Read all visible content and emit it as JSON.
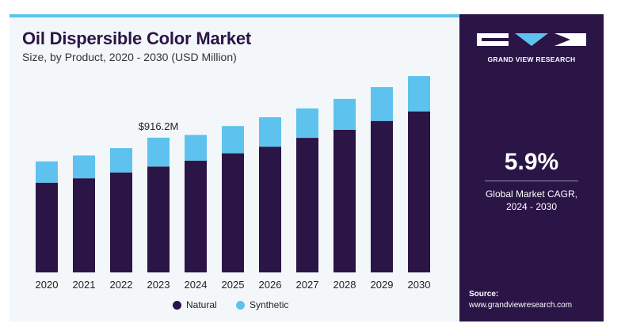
{
  "title": "Oil Dispersible Color Market",
  "subtitle": "Size, by Product, 2020 - 2030 (USD Million)",
  "brand": "GRAND VIEW RESEARCH",
  "cagr_value": "5.9%",
  "cagr_label_line1": "Global Market CAGR,",
  "cagr_label_line2": "2024 - 2030",
  "source_title": "Source:",
  "source_url": "www.grandviewresearch.com",
  "colors": {
    "natural": "#2a1546",
    "synthetic": "#5dc3ee",
    "panel": "#2a1546",
    "accent": "#5dc3ee"
  },
  "chart_data": {
    "type": "bar",
    "stacked": true,
    "categories": [
      "2020",
      "2021",
      "2022",
      "2023",
      "2024",
      "2025",
      "2026",
      "2027",
      "2028",
      "2029",
      "2030"
    ],
    "series": [
      {
        "name": "Natural",
        "values": [
          610,
          640,
          680,
          720,
          760,
          810,
          855,
          915,
          970,
          1030,
          1095
        ]
      },
      {
        "name": "Synthetic",
        "values": [
          145,
          155,
          165,
          196,
          175,
          185,
          200,
          200,
          210,
          230,
          240
        ]
      }
    ],
    "annotation": {
      "category": "2023",
      "text": "$916.2M"
    },
    "legend": "bottom-center",
    "grid": false,
    "ylim": [
      0,
      1400
    ]
  }
}
